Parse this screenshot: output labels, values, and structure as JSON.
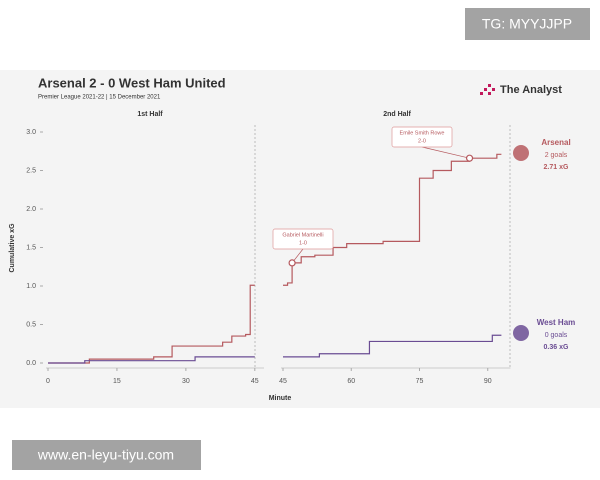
{
  "chart_data": [
    {
      "type": "step",
      "title": "Arsenal 2 - 0 West Ham United",
      "subtitle": "Premier League 2021-22 | 15 December 2021",
      "panel": "1st Half",
      "ylabel": "Cumulative xG",
      "brand": "The Analyst",
      "xlim": [
        0,
        47
      ],
      "xticks": [
        0,
        15,
        30,
        45
      ],
      "ylim": [
        0,
        3
      ],
      "yticks": [
        {
          "value": 0,
          "label": "0.0"
        },
        0.5,
        {
          "value": 1,
          "label": "1.0"
        },
        1.5,
        {
          "value": 2,
          "label": "2.0"
        },
        2.5,
        {
          "value": 3,
          "label": "3.0"
        }
      ],
      "series": [
        {
          "name": "Arsenal",
          "color": "#b5595e",
          "x": [
            0,
            9,
            23,
            27,
            38,
            40,
            43,
            44,
            45
          ],
          "values": [
            0,
            0.05,
            0.08,
            0.22,
            0.27,
            0.35,
            0.37,
            1.01,
            1.01
          ]
        },
        {
          "name": "West Ham",
          "color": "#6a4c93",
          "x": [
            0,
            8,
            32,
            45
          ],
          "values": [
            0,
            0.03,
            0.08,
            0.08
          ]
        }
      ]
    },
    {
      "type": "step",
      "panel": "2nd Half",
      "xlabel": "Minute",
      "xlim": [
        45,
        95
      ],
      "xticks": [
        45,
        60,
        75,
        90
      ],
      "ylim": [
        0,
        3
      ],
      "series": [
        {
          "name": "Arsenal",
          "color": "#b5595e",
          "x": [
            45,
            46,
            47,
            49,
            52,
            56,
            59,
            67,
            75,
            78,
            82,
            86,
            92,
            93
          ],
          "values": [
            1.01,
            1.04,
            1.3,
            1.38,
            1.4,
            1.5,
            1.55,
            1.58,
            2.4,
            2.5,
            2.62,
            2.66,
            2.71,
            2.71
          ],
          "goals": "2 goals",
          "xg": "2.71 xG"
        },
        {
          "name": "West Ham",
          "color": "#6a4c93",
          "x": [
            45,
            53,
            64,
            91,
            93
          ],
          "values": [
            0.08,
            0.12,
            0.28,
            0.36,
            0.36
          ],
          "goals": "0 goals",
          "xg": "0.36 xG"
        }
      ],
      "annotations": [
        {
          "x": 47,
          "y": 1.3,
          "text": "Gabriel Martinelli",
          "score": "1-0"
        },
        {
          "x": 86,
          "y": 2.66,
          "text": "Emile Smith Rowe",
          "score": "2-0"
        }
      ]
    }
  ],
  "watermarks": {
    "top": "TG: MYYJJPP",
    "bottom": "www.en-leyu-tiyu.com"
  }
}
